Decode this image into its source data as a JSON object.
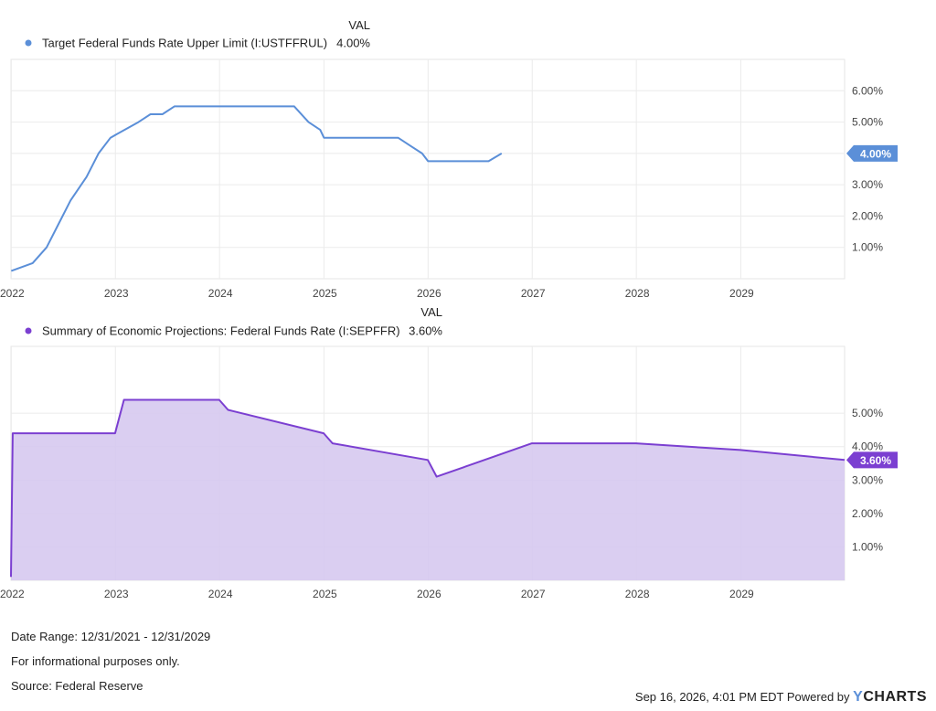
{
  "chart_data": [
    {
      "type": "line",
      "legend_header": "VAL",
      "series": [
        {
          "name": "Target Federal Funds Rate Upper Limit (I:USTFFRUL)",
          "latest_value": "4.00%",
          "color": "#5b8fd8",
          "points": [
            [
              "2022-01-01",
              0.25
            ],
            [
              "2022-03-17",
              0.5
            ],
            [
              "2022-05-05",
              1.0
            ],
            [
              "2022-06-16",
              1.75
            ],
            [
              "2022-07-28",
              2.5
            ],
            [
              "2022-09-22",
              3.25
            ],
            [
              "2022-11-03",
              4.0
            ],
            [
              "2022-12-15",
              4.5
            ],
            [
              "2023-02-02",
              4.75
            ],
            [
              "2023-03-23",
              5.0
            ],
            [
              "2023-05-04",
              5.25
            ],
            [
              "2023-06-15",
              5.25
            ],
            [
              "2023-07-27",
              5.5
            ],
            [
              "2024-09-19",
              5.5
            ],
            [
              "2024-11-08",
              5.0
            ],
            [
              "2024-12-19",
              4.75
            ],
            [
              "2025-01-01",
              4.5
            ],
            [
              "2025-09-18",
              4.5
            ],
            [
              "2025-10-30",
              4.25
            ],
            [
              "2025-12-11",
              4.0
            ],
            [
              "2026-01-01",
              3.75
            ],
            [
              "2026-08-01",
              3.75
            ],
            [
              "2026-09-16",
              4.0
            ]
          ]
        }
      ],
      "xlim": [
        "2021-12-31",
        "2029-12-31"
      ],
      "ylim": [
        0,
        7
      ],
      "x_ticks": [
        "2022",
        "2023",
        "2024",
        "2025",
        "2026",
        "2027",
        "2028",
        "2029"
      ],
      "y_ticks": [
        "1.00%",
        "2.00%",
        "3.00%",
        "4.00%",
        "5.00%",
        "6.00%"
      ],
      "grid": true,
      "legend_placement": "top-left"
    },
    {
      "type": "area",
      "legend_header": "VAL",
      "series": [
        {
          "name": "Summary of Economic Projections: Federal Funds Rate (I:SEPFFR)",
          "latest_value": "3.60%",
          "color": "#7b3fd1",
          "fill": "#d6c9f0",
          "points": [
            [
              "2021-12-31",
              0.1
            ],
            [
              "2022-01-06",
              4.4
            ],
            [
              "2022-12-31",
              4.4
            ],
            [
              "2023-01-31",
              5.4
            ],
            [
              "2023-12-31",
              5.4
            ],
            [
              "2024-01-31",
              5.1
            ],
            [
              "2024-12-31",
              4.4
            ],
            [
              "2025-01-31",
              4.1
            ],
            [
              "2025-12-31",
              3.6
            ],
            [
              "2026-01-31",
              3.1
            ],
            [
              "2026-12-31",
              4.1
            ],
            [
              "2027-12-31",
              4.1
            ],
            [
              "2028-12-31",
              3.9
            ],
            [
              "2029-12-31",
              3.6
            ]
          ]
        }
      ],
      "xlim": [
        "2021-12-31",
        "2029-12-31"
      ],
      "ylim": [
        0,
        7
      ],
      "x_ticks": [
        "2022",
        "2023",
        "2024",
        "2025",
        "2026",
        "2027",
        "2028",
        "2029"
      ],
      "y_ticks": [
        "1.00%",
        "2.00%",
        "3.00%",
        "4.00%",
        "5.00%"
      ],
      "grid": true,
      "legend_placement": "top-left"
    }
  ],
  "footer": {
    "date_range": "Date Range: 12/31/2021 - 12/31/2029",
    "disclaimer": "For informational purposes only.",
    "source": "Source: Federal Reserve",
    "timestamp": "Sep 16, 2026, 4:01 PM EDT Powered by",
    "brand_y": "Y",
    "brand_rest": "CHARTS"
  }
}
